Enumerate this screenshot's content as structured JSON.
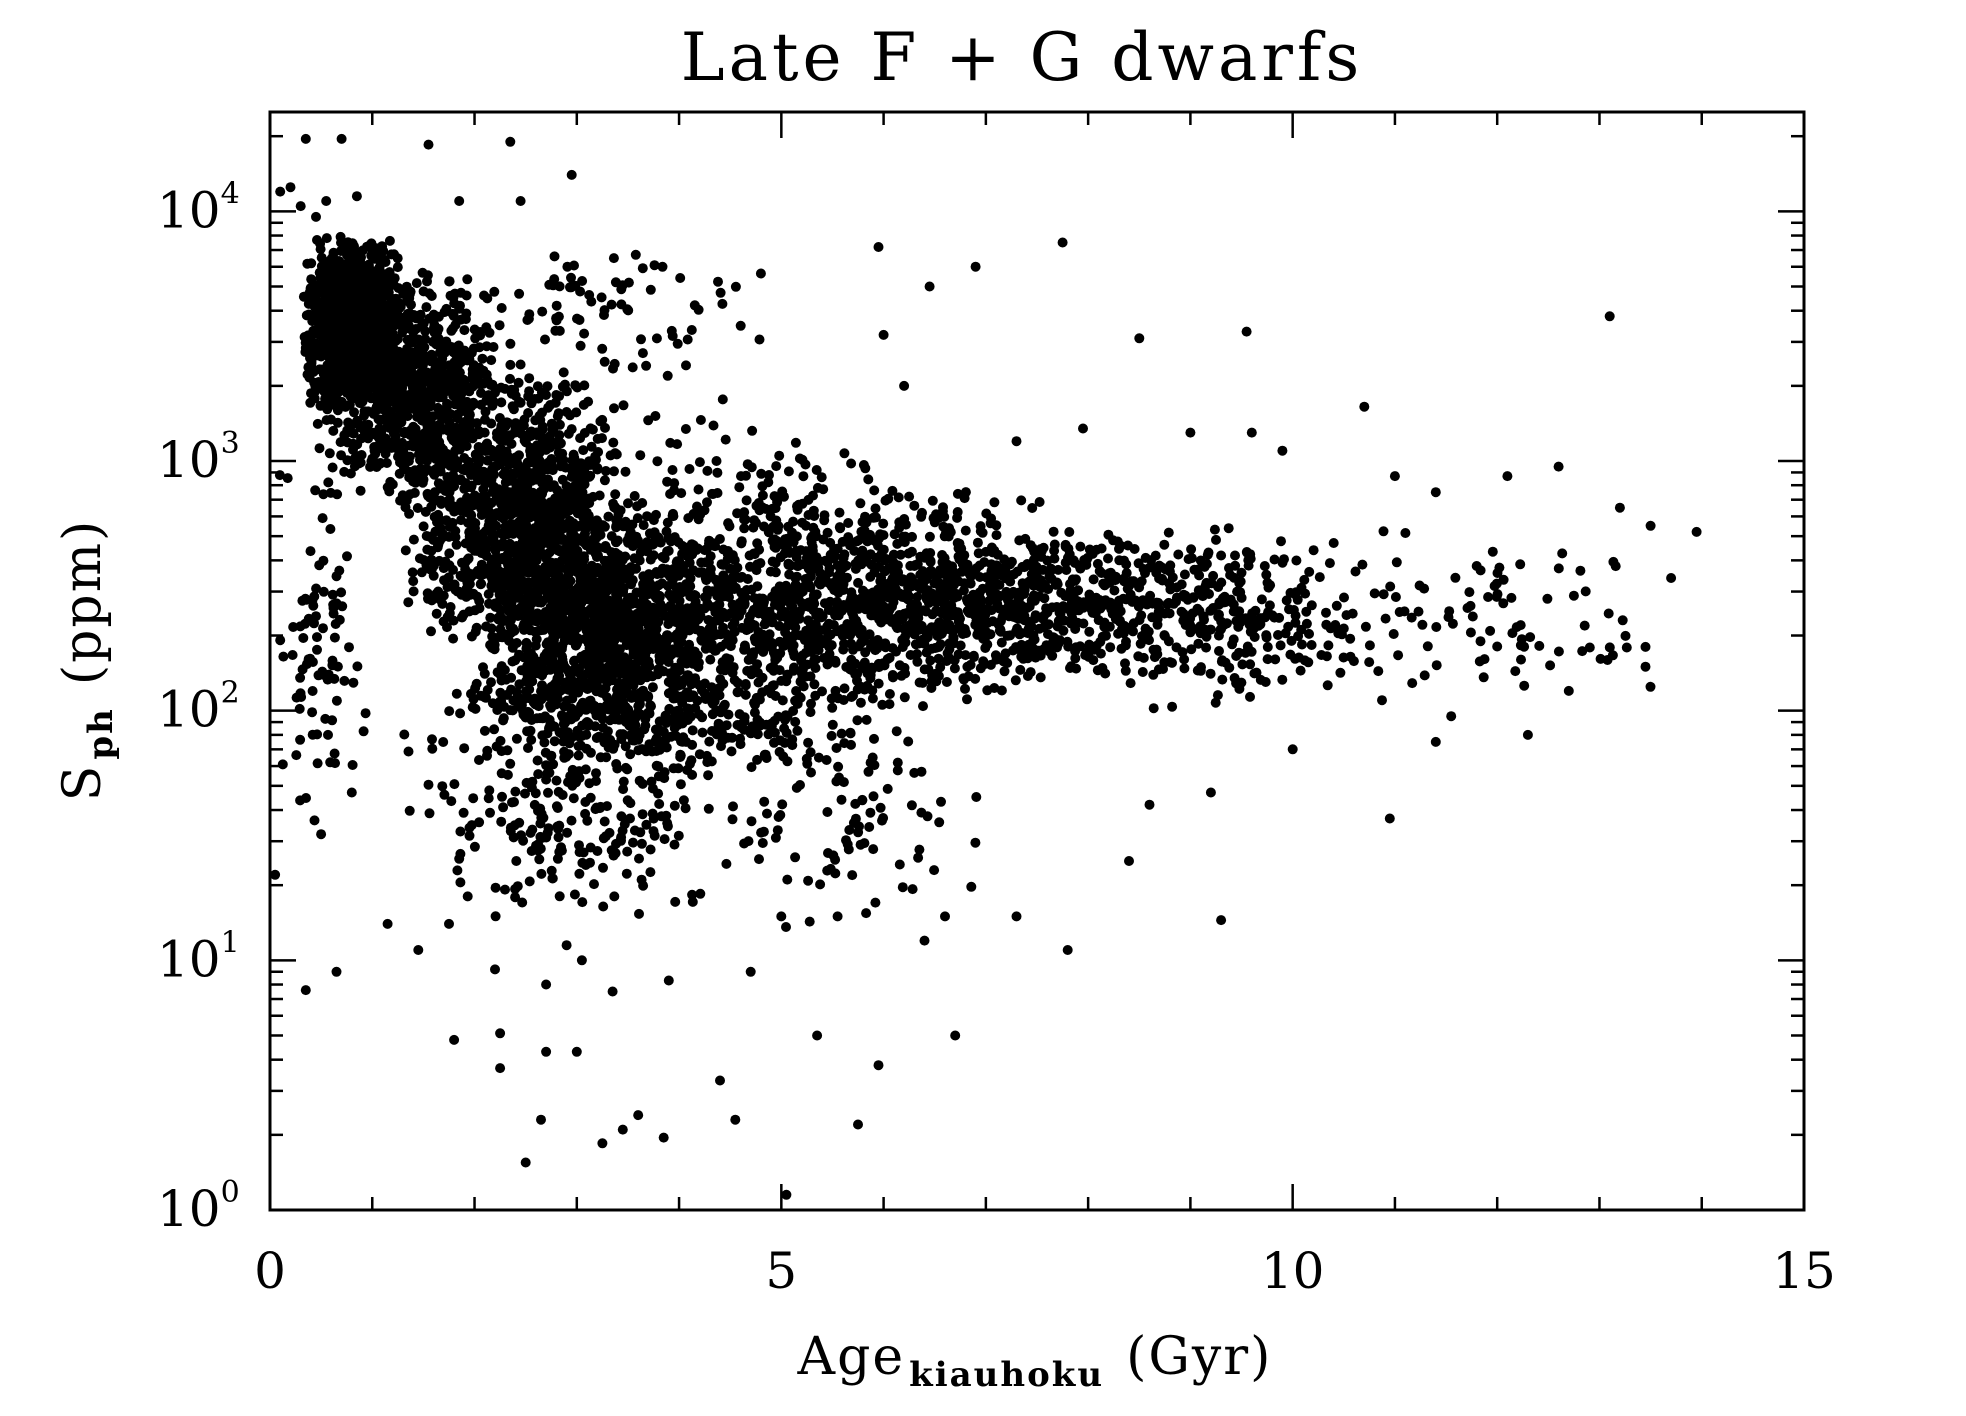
{
  "chart_data": {
    "type": "scatter",
    "title": "Late F + G dwarfs",
    "xlabel": {
      "main": "Age",
      "subscript": "kiauhoku",
      "unit": "(Gyr)"
    },
    "ylabel": {
      "main": "S",
      "subscript": "ph",
      "unit": "(ppm)"
    },
    "xlim": [
      0,
      15
    ],
    "ylim": [
      1,
      25000
    ],
    "yscale": "log",
    "x_ticks": [
      {
        "value": 0,
        "label": "0"
      },
      {
        "value": 5,
        "label": "5"
      },
      {
        "value": 10,
        "label": "10"
      },
      {
        "value": 15,
        "label": "15"
      }
    ],
    "y_ticks": [
      {
        "value": 1,
        "base": "10",
        "exp": "0"
      },
      {
        "value": 10,
        "base": "10",
        "exp": "1"
      },
      {
        "value": 100,
        "base": "10",
        "exp": "2"
      },
      {
        "value": 1000,
        "base": "10",
        "exp": "3"
      },
      {
        "value": 10000,
        "base": "10",
        "exp": "4"
      }
    ],
    "grid": false,
    "marker_color": "#000000",
    "series": [
      {
        "points": [
          [
            0.35,
            19500
          ],
          [
            0.7,
            19500
          ],
          [
            1.55,
            18500
          ],
          [
            2.35,
            19000
          ],
          [
            2.95,
            14000
          ],
          [
            0.2,
            12500
          ],
          [
            0.55,
            11000
          ],
          [
            0.85,
            11500
          ],
          [
            1.85,
            11000
          ],
          [
            2.45,
            11000
          ],
          [
            0.1,
            12000
          ],
          [
            0.3,
            10500
          ],
          [
            0.45,
            9500
          ],
          [
            5.95,
            7200
          ],
          [
            7.75,
            7500
          ],
          [
            6.9,
            6000
          ],
          [
            6.45,
            5000
          ],
          [
            13.1,
            3800
          ],
          [
            9.55,
            3300
          ],
          [
            8.5,
            3100
          ],
          [
            6.0,
            3200
          ],
          [
            10.7,
            1650
          ],
          [
            6.2,
            2000
          ],
          [
            7.3,
            1200
          ],
          [
            7.95,
            1350
          ],
          [
            9.0,
            1300
          ],
          [
            9.6,
            1300
          ],
          [
            9.9,
            1100
          ],
          [
            11.0,
            870
          ],
          [
            12.1,
            870
          ],
          [
            12.6,
            950
          ],
          [
            11.4,
            750
          ],
          [
            13.2,
            650
          ],
          [
            13.5,
            550
          ],
          [
            13.95,
            520
          ],
          [
            13.7,
            340
          ],
          [
            13.45,
            150
          ],
          [
            13.45,
            180
          ],
          [
            12.7,
            120
          ],
          [
            12.3,
            80
          ],
          [
            11.4,
            75
          ],
          [
            11.55,
            95
          ],
          [
            10.0,
            70
          ],
          [
            9.3,
            14.5
          ],
          [
            7.8,
            11
          ],
          [
            6.7,
            5
          ],
          [
            5.95,
            3.8
          ],
          [
            5.75,
            2.2
          ],
          [
            5.05,
            1.15
          ],
          [
            4.55,
            2.3
          ],
          [
            4.4,
            3.3
          ],
          [
            3.85,
            1.95
          ],
          [
            3.6,
            2.4
          ],
          [
            3.45,
            2.1
          ],
          [
            3.25,
            1.85
          ],
          [
            2.5,
            1.55
          ],
          [
            2.65,
            2.3
          ],
          [
            1.8,
            4.8
          ],
          [
            2.25,
            3.7
          ],
          [
            2.7,
            4.3
          ],
          [
            3.0,
            4.3
          ],
          [
            2.25,
            5.1
          ],
          [
            0.35,
            7.6
          ],
          [
            0.65,
            9
          ],
          [
            0.5,
            32
          ],
          [
            0.8,
            47
          ],
          [
            0.05,
            22
          ],
          [
            1.15,
            14
          ],
          [
            1.45,
            11
          ],
          [
            1.75,
            14
          ],
          [
            2.2,
            9.2
          ],
          [
            2.7,
            8
          ],
          [
            2.9,
            11.5
          ],
          [
            3.05,
            10
          ],
          [
            3.35,
            7.5
          ],
          [
            3.9,
            8.3
          ],
          [
            4.7,
            9
          ],
          [
            5.35,
            5
          ],
          [
            6.4,
            12
          ],
          [
            5.0,
            15
          ],
          [
            5.55,
            15
          ],
          [
            6.6,
            15
          ],
          [
            7.3,
            15
          ],
          [
            8.4,
            25
          ],
          [
            8.6,
            42
          ],
          [
            9.2,
            47
          ],
          [
            10.95,
            37
          ]
        ],
        "density_regions": [
          {
            "x": [
              0.3,
              1.3
            ],
            "logy": [
              3.2,
              3.9
            ],
            "count": 950
          },
          {
            "x": [
              0.4,
              2.3
            ],
            "logy": [
              2.8,
              3.8
            ],
            "count": 750
          },
          {
            "x": [
              1.3,
              3.5
            ],
            "logy": [
              2.2,
              3.4
            ],
            "count": 950
          },
          {
            "x": [
              2.0,
              4.6
            ],
            "logy": [
              1.7,
              2.9
            ],
            "count": 1050
          },
          {
            "x": [
              1.2,
              5.2
            ],
            "logy": [
              1.4,
              3.3
            ],
            "count": 700
          },
          {
            "x": [
              3.8,
              6.3
            ],
            "logy": [
              1.7,
              3.1
            ],
            "count": 650
          },
          {
            "x": [
              5.0,
              8.0
            ],
            "logy": [
              2.0,
              2.9
            ],
            "count": 550
          },
          {
            "x": [
              6.0,
              9.6
            ],
            "logy": [
              2.1,
              2.75
            ],
            "count": 420
          },
          {
            "x": [
              8.0,
              11.0
            ],
            "logy": [
              2.0,
              2.75
            ],
            "count": 230
          },
          {
            "x": [
              10.0,
              13.8
            ],
            "logy": [
              2.0,
              2.75
            ],
            "count": 90
          },
          {
            "x": [
              0.0,
              1.0
            ],
            "logy": [
              1.5,
              3.1
            ],
            "count": 90
          },
          {
            "x": [
              1.5,
              4.5
            ],
            "logy": [
              1.1,
              1.9
            ],
            "count": 140
          },
          {
            "x": [
              4.0,
              7.2
            ],
            "logy": [
              1.1,
              2.0
            ],
            "count": 90
          },
          {
            "x": [
              1.5,
              5.0
            ],
            "logy": [
              3.3,
              3.9
            ],
            "count": 90
          }
        ]
      }
    ]
  }
}
